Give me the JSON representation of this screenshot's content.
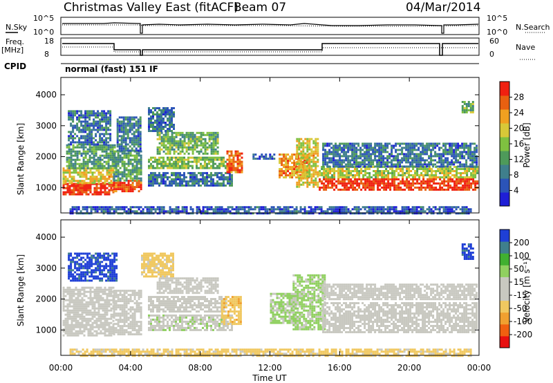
{
  "header": {
    "title": "Christmas Valley East (fitACF)",
    "beam": "Beam 07",
    "date": "04/Mar/2014"
  },
  "panel_labels": {
    "nsky": "N.Sky",
    "nsearch": "N.Search",
    "freq": "Freq.",
    "freq_unit": "[MHz]",
    "nave": "Nave",
    "cpid": "CPID",
    "cpid_value": "normal (fast) 151 IF"
  },
  "noise_axis": {
    "left_ticks": [
      "10^5",
      "10^0"
    ],
    "right_ticks": [
      "10^5",
      "10^0"
    ]
  },
  "freq_axis": {
    "left_ticks": [
      "18",
      "8"
    ],
    "right_ticks": [
      "60",
      "0"
    ]
  },
  "chart_data": [
    {
      "type": "heatmap",
      "title": "",
      "xlabel": "Time UT",
      "ylabel": "Slant Range [km]",
      "x_ticks": [
        "00:00",
        "04:00",
        "08:00",
        "12:00",
        "16:00",
        "20:00",
        "00:00"
      ],
      "y_ticks": [
        1000,
        2000,
        3000,
        4000
      ],
      "xlim": [
        0,
        24
      ],
      "ylim": [
        180,
        4560
      ],
      "colorbar": {
        "label": "Power [dB]",
        "ticks": [
          4,
          8,
          12,
          16,
          20,
          24,
          28
        ],
        "range": [
          0,
          32
        ],
        "colors": [
          "#1f1fd6",
          "#2b54b8",
          "#3f7f8c",
          "#4e9a5a",
          "#7fc040",
          "#d8c838",
          "#f0a020",
          "#e86010",
          "#f02010"
        ]
      },
      "regions": [
        {
          "t0": 0.1,
          "t1": 3.0,
          "r0": 800,
          "r1": 1150,
          "level": 30
        },
        {
          "t0": 0.1,
          "t1": 3.0,
          "r0": 1150,
          "r1": 1650,
          "level": 20
        },
        {
          "t0": 0.3,
          "t1": 3.1,
          "r0": 1650,
          "r1": 2400,
          "level": 12
        },
        {
          "t0": 0.4,
          "t1": 2.8,
          "r0": 2400,
          "r1": 3500,
          "level": 8
        },
        {
          "t0": 3.0,
          "t1": 4.6,
          "r0": 850,
          "r1": 1250,
          "level": 28
        },
        {
          "t0": 3.0,
          "t1": 4.6,
          "r0": 1250,
          "r1": 2200,
          "level": 12
        },
        {
          "t0": 3.2,
          "t1": 4.6,
          "r0": 2200,
          "r1": 3300,
          "level": 8
        },
        {
          "t0": 5.0,
          "t1": 6.5,
          "r0": 2800,
          "r1": 3600,
          "level": 8
        },
        {
          "t0": 5.0,
          "t1": 9.8,
          "r0": 1050,
          "r1": 1500,
          "level": 8
        },
        {
          "t0": 5.0,
          "t1": 9.5,
          "r0": 1600,
          "r1": 2000,
          "level": 16
        },
        {
          "t0": 5.5,
          "t1": 9.0,
          "r0": 2100,
          "r1": 2800,
          "level": 14
        },
        {
          "t0": 9.5,
          "t1": 10.4,
          "r0": 1500,
          "r1": 2200,
          "level": 26
        },
        {
          "t0": 11.0,
          "t1": 12.3,
          "r0": 1900,
          "r1": 2100,
          "level": 6
        },
        {
          "t0": 12.5,
          "t1": 14.2,
          "r0": 1350,
          "r1": 2100,
          "level": 24
        },
        {
          "t0": 13.5,
          "t1": 14.8,
          "r0": 1000,
          "r1": 2600,
          "level": 20
        },
        {
          "t0": 14.8,
          "t1": 23.9,
          "r0": 900,
          "r1": 1300,
          "level": 30
        },
        {
          "t0": 14.8,
          "t1": 23.9,
          "r0": 1300,
          "r1": 1700,
          "level": 18
        },
        {
          "t0": 15.0,
          "t1": 23.9,
          "r0": 1700,
          "r1": 2450,
          "level": 8
        },
        {
          "t0": 23.0,
          "t1": 23.6,
          "r0": 3400,
          "r1": 3800,
          "level": 14
        },
        {
          "t0": 0.5,
          "t1": 23.5,
          "r0": 180,
          "r1": 400,
          "level": 6
        }
      ]
    },
    {
      "type": "heatmap",
      "title": "",
      "xlabel": "Time UT",
      "ylabel": "Slant Range [km]",
      "x_ticks": [
        "00:00",
        "04:00",
        "08:00",
        "12:00",
        "16:00",
        "20:00",
        "00:00"
      ],
      "y_ticks": [
        1000,
        2000,
        3000,
        4000
      ],
      "xlim": [
        0,
        24
      ],
      "ylim": [
        180,
        4560
      ],
      "colorbar": {
        "label": "Velocity [m s⁻¹]",
        "ticks": [
          "200",
          "100",
          "50",
          "15",
          "-15",
          "-50",
          "-100",
          "-200"
        ],
        "range": [
          -250,
          250
        ],
        "colors": [
          "#e81010",
          "#f06010",
          "#f0a030",
          "#f0c860",
          "#c8c8c0",
          "#c8c8c0",
          "#90d060",
          "#40b030",
          "#3f7f8c",
          "#1f3fd6"
        ]
      },
      "regions": [
        {
          "t0": 0.1,
          "t1": 3.0,
          "r0": 800,
          "r1": 2400,
          "level": 0
        },
        {
          "t0": 0.4,
          "t1": 3.2,
          "r0": 2600,
          "r1": 3500,
          "level": 220
        },
        {
          "t0": 3.0,
          "t1": 4.6,
          "r0": 850,
          "r1": 2300,
          "level": 0
        },
        {
          "t0": 4.6,
          "t1": 6.5,
          "r0": 2700,
          "r1": 3500,
          "level": -70
        },
        {
          "t0": 5.0,
          "t1": 9.8,
          "r0": 1000,
          "r1": 1500,
          "level": 30
        },
        {
          "t0": 5.0,
          "t1": 9.5,
          "r0": 1600,
          "r1": 2100,
          "level": 0
        },
        {
          "t0": 5.5,
          "t1": 9.0,
          "r0": 2200,
          "r1": 2700,
          "level": 0
        },
        {
          "t0": 9.2,
          "t1": 10.3,
          "r0": 1200,
          "r1": 2100,
          "level": -80
        },
        {
          "t0": 12.0,
          "t1": 13.5,
          "r0": 1200,
          "r1": 2200,
          "level": 60
        },
        {
          "t0": 13.3,
          "t1": 15.2,
          "r0": 1000,
          "r1": 2800,
          "level": 60
        },
        {
          "t0": 15.0,
          "t1": 23.9,
          "r0": 900,
          "r1": 1900,
          "level": 0
        },
        {
          "t0": 15.0,
          "t1": 23.9,
          "r0": 2000,
          "r1": 2500,
          "level": 0
        },
        {
          "t0": 23.0,
          "t1": 23.6,
          "r0": 3300,
          "r1": 3800,
          "level": 220
        },
        {
          "t0": 0.5,
          "t1": 23.5,
          "r0": 180,
          "r1": 400,
          "level": -70
        }
      ]
    }
  ]
}
